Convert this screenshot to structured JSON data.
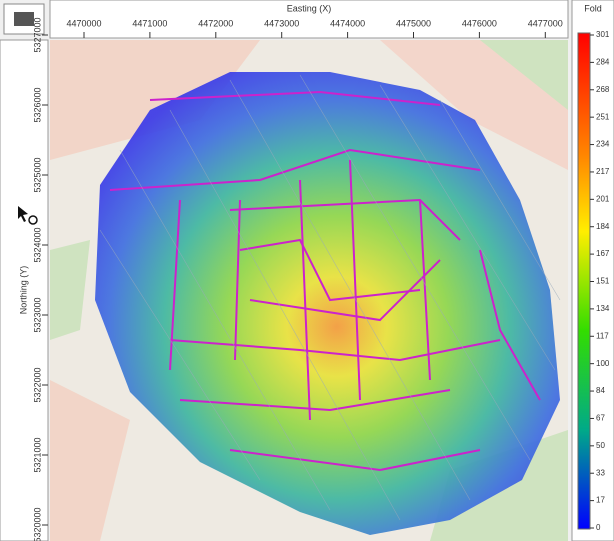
{
  "x_axis": {
    "label": "Easting (X)",
    "ticks": [
      4470000,
      4471000,
      4472000,
      4473000,
      4474000,
      4475000,
      4476000,
      4477000
    ]
  },
  "y_axis": {
    "label": "Northing (Y)",
    "ticks": [
      5327000,
      5326000,
      5325000,
      5324000,
      5323000,
      5322000,
      5321000,
      5320000
    ]
  },
  "colorbar": {
    "title": "Fold",
    "labels": [
      301,
      284,
      268,
      251,
      234,
      217,
      201,
      184,
      167,
      151,
      134,
      117,
      100,
      84,
      67,
      50,
      33,
      17,
      0
    ]
  }
}
